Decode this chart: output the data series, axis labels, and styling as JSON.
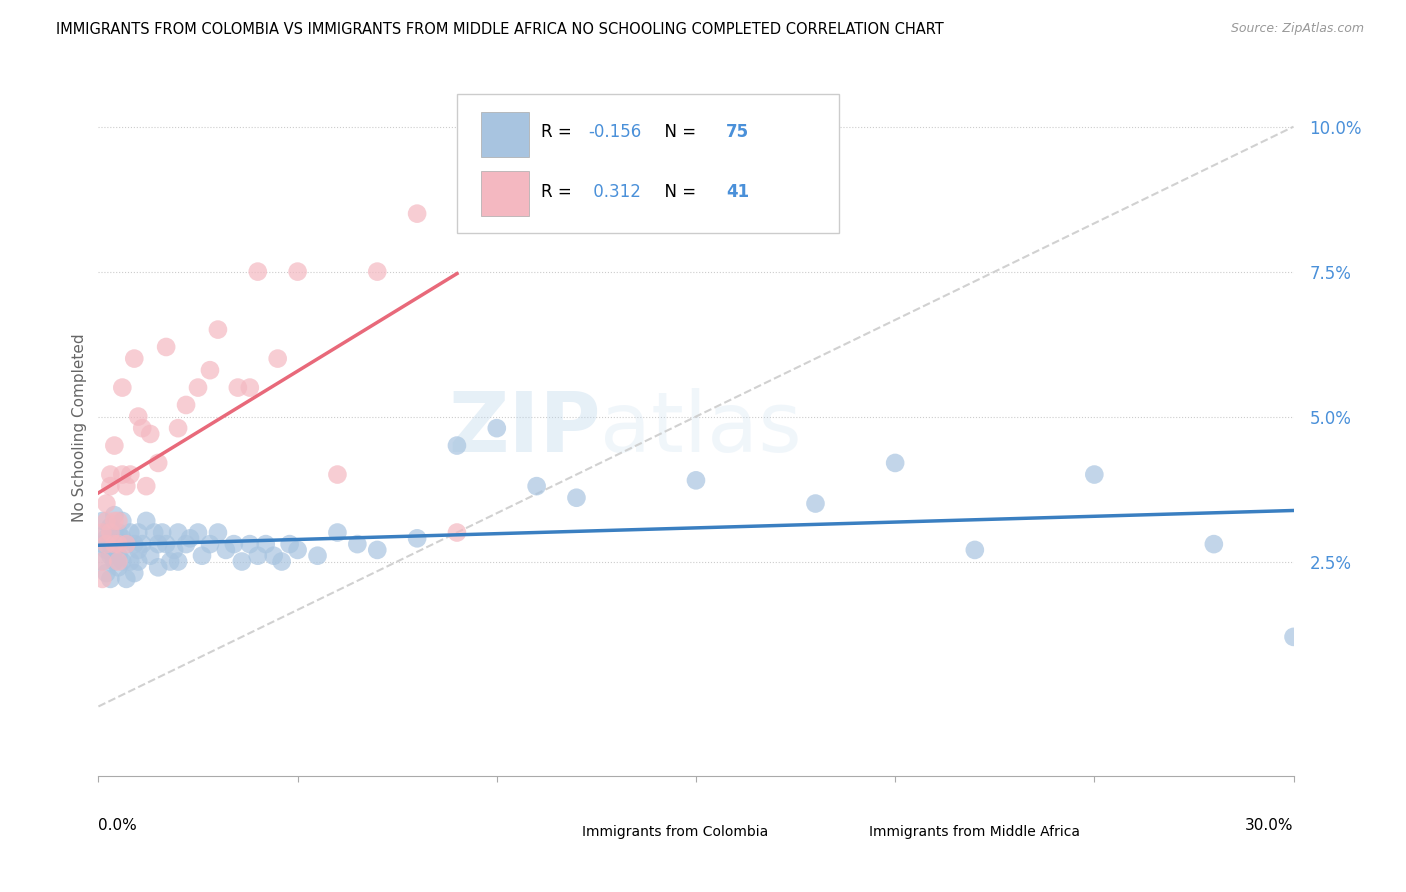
{
  "title": "IMMIGRANTS FROM COLOMBIA VS IMMIGRANTS FROM MIDDLE AFRICA NO SCHOOLING COMPLETED CORRELATION CHART",
  "source": "Source: ZipAtlas.com",
  "ylabel": "No Schooling Completed",
  "ytick_vals": [
    0.025,
    0.05,
    0.075,
    0.1
  ],
  "ytick_labels": [
    "2.5%",
    "5.0%",
    "7.5%",
    "10.0%"
  ],
  "xlim": [
    0.0,
    0.3
  ],
  "ylim": [
    -0.012,
    0.108
  ],
  "legend_colombia": "Immigrants from Colombia",
  "legend_africa": "Immigrants from Middle Africa",
  "R_colombia": -0.156,
  "N_colombia": 75,
  "R_africa": 0.312,
  "N_africa": 41,
  "color_colombia": "#a8c4e0",
  "color_africa": "#f4b8c1",
  "trendline_colombia_color": "#3a7fc1",
  "trendline_africa_color": "#e8697a",
  "trendline_dashed_color": "#cccccc",
  "watermark_zip": "ZIP",
  "watermark_atlas": "atlas",
  "colombia_x": [
    0.001,
    0.001,
    0.001,
    0.002,
    0.002,
    0.002,
    0.002,
    0.003,
    0.003,
    0.003,
    0.003,
    0.004,
    0.004,
    0.004,
    0.004,
    0.005,
    0.005,
    0.005,
    0.005,
    0.006,
    0.006,
    0.006,
    0.007,
    0.007,
    0.008,
    0.008,
    0.009,
    0.009,
    0.01,
    0.01,
    0.01,
    0.011,
    0.012,
    0.013,
    0.014,
    0.015,
    0.015,
    0.016,
    0.017,
    0.018,
    0.019,
    0.02,
    0.02,
    0.022,
    0.023,
    0.025,
    0.026,
    0.028,
    0.03,
    0.032,
    0.034,
    0.036,
    0.038,
    0.04,
    0.042,
    0.044,
    0.046,
    0.048,
    0.05,
    0.055,
    0.06,
    0.065,
    0.07,
    0.08,
    0.09,
    0.1,
    0.11,
    0.12,
    0.15,
    0.18,
    0.2,
    0.22,
    0.25,
    0.28,
    0.3
  ],
  "colombia_y": [
    0.032,
    0.028,
    0.025,
    0.03,
    0.027,
    0.023,
    0.029,
    0.031,
    0.028,
    0.026,
    0.022,
    0.033,
    0.027,
    0.025,
    0.03,
    0.028,
    0.026,
    0.03,
    0.024,
    0.029,
    0.025,
    0.032,
    0.028,
    0.022,
    0.03,
    0.025,
    0.028,
    0.023,
    0.03,
    0.027,
    0.025,
    0.028,
    0.032,
    0.026,
    0.03,
    0.028,
    0.024,
    0.03,
    0.028,
    0.025,
    0.027,
    0.03,
    0.025,
    0.028,
    0.029,
    0.03,
    0.026,
    0.028,
    0.03,
    0.027,
    0.028,
    0.025,
    0.028,
    0.026,
    0.028,
    0.026,
    0.025,
    0.028,
    0.027,
    0.026,
    0.03,
    0.028,
    0.027,
    0.029,
    0.045,
    0.048,
    0.038,
    0.036,
    0.039,
    0.035,
    0.042,
    0.027,
    0.04,
    0.028,
    0.012
  ],
  "africa_x": [
    0.001,
    0.001,
    0.001,
    0.002,
    0.002,
    0.002,
    0.003,
    0.003,
    0.003,
    0.004,
    0.004,
    0.004,
    0.005,
    0.005,
    0.005,
    0.006,
    0.006,
    0.007,
    0.007,
    0.008,
    0.009,
    0.01,
    0.011,
    0.012,
    0.013,
    0.015,
    0.017,
    0.02,
    0.022,
    0.025,
    0.028,
    0.03,
    0.035,
    0.038,
    0.04,
    0.045,
    0.05,
    0.06,
    0.07,
    0.08,
    0.09
  ],
  "africa_y": [
    0.025,
    0.022,
    0.03,
    0.032,
    0.028,
    0.035,
    0.04,
    0.03,
    0.038,
    0.028,
    0.032,
    0.045,
    0.028,
    0.032,
    0.025,
    0.04,
    0.055,
    0.038,
    0.028,
    0.04,
    0.06,
    0.05,
    0.048,
    0.038,
    0.047,
    0.042,
    0.062,
    0.048,
    0.052,
    0.055,
    0.058,
    0.065,
    0.055,
    0.055,
    0.075,
    0.06,
    0.075,
    0.04,
    0.075,
    0.085,
    0.03
  ]
}
